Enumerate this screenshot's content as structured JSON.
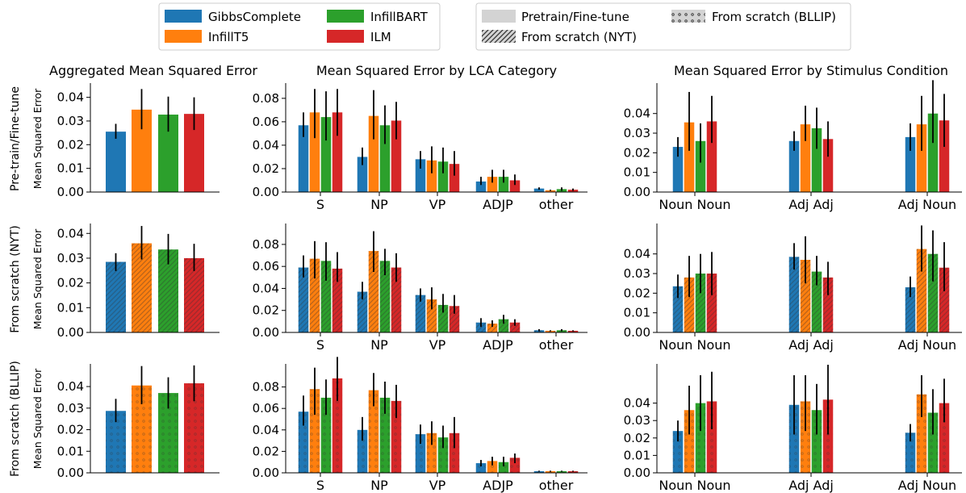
{
  "legend_models": {
    "items": [
      "GibbsComplete",
      "InfillT5",
      "InfillBART",
      "ILM"
    ],
    "colors": [
      "#1f77b4",
      "#ff7f0e",
      "#2ca02c",
      "#d62728"
    ]
  },
  "legend_training": {
    "items": [
      "Pretrain/Fine-tune",
      "From scratch (NYT)",
      "From scratch (BLLIP)"
    ],
    "hatches": [
      "none",
      "diagonal",
      "dots"
    ]
  },
  "column_titles": [
    "Aggregated Mean Squared Error",
    "Mean Squared Error by LCA Category",
    "Mean Squared Error by Stimulus Condition"
  ],
  "row_labels": [
    "Pre-train/Fine-tune",
    "From scratch (NYT)",
    "From scratch (BLLIP)"
  ],
  "ylabel": "Mean Squared Error",
  "chart_data": [
    {
      "type": "bar",
      "title": "Aggregated Mean Squared Error",
      "row": "Pre-train/Fine-tune",
      "ylabel": "Mean Squared Error",
      "ylim": [
        0,
        0.046
      ],
      "yticks": [
        "0.00",
        "0.01",
        "0.02",
        "0.03",
        "0.04"
      ],
      "categories": [
        ""
      ],
      "series": [
        {
          "name": "GibbsComplete",
          "values": [
            0.0255
          ],
          "err": [
            [
              0.0225,
              0.0288
            ]
          ]
        },
        {
          "name": "InfillT5",
          "values": [
            0.0348
          ],
          "err": [
            [
              0.0265,
              0.0435
            ]
          ]
        },
        {
          "name": "InfillBART",
          "values": [
            0.0327
          ],
          "err": [
            [
              0.0255,
              0.0403
            ]
          ]
        },
        {
          "name": "ILM",
          "values": [
            0.033
          ],
          "err": [
            [
              0.0262,
              0.04
            ]
          ]
        }
      ]
    },
    {
      "type": "bar",
      "title": "Mean Squared Error by LCA Category",
      "row": "Pre-train/Fine-tune",
      "ylim": [
        0,
        0.093
      ],
      "yticks": [
        "0.00",
        "0.02",
        "0.04",
        "0.06",
        "0.08"
      ],
      "categories": [
        "S",
        "NP",
        "VP",
        "ADJP",
        "other"
      ],
      "series": [
        {
          "name": "GibbsComplete",
          "values": [
            0.057,
            0.03,
            0.028,
            0.009,
            0.003
          ],
          "err": [
            [
              0.047,
              0.068
            ],
            [
              0.023,
              0.038
            ],
            [
              0.02,
              0.035
            ],
            [
              0.006,
              0.013
            ],
            [
              0.002,
              0.004
            ]
          ]
        },
        {
          "name": "InfillT5",
          "values": [
            0.068,
            0.065,
            0.027,
            0.013,
            0.0015
          ],
          "err": [
            [
              0.046,
              0.088
            ],
            [
              0.045,
              0.087
            ],
            [
              0.016,
              0.039
            ],
            [
              0.008,
              0.019
            ],
            [
              0.001,
              0.002
            ]
          ]
        },
        {
          "name": "InfillBART",
          "values": [
            0.064,
            0.057,
            0.026,
            0.013,
            0.0025
          ],
          "err": [
            [
              0.044,
              0.086
            ],
            [
              0.041,
              0.074
            ],
            [
              0.016,
              0.038
            ],
            [
              0.008,
              0.019
            ],
            [
              0.001,
              0.004
            ]
          ]
        },
        {
          "name": "ILM",
          "values": [
            0.068,
            0.061,
            0.024,
            0.01,
            0.002
          ],
          "err": [
            [
              0.048,
              0.088
            ],
            [
              0.045,
              0.077
            ],
            [
              0.014,
              0.035
            ],
            [
              0.006,
              0.015
            ],
            [
              0.001,
              0.003
            ]
          ]
        }
      ]
    },
    {
      "type": "bar",
      "title": "Mean Squared Error by Stimulus Condition",
      "row": "Pre-train/Fine-tune",
      "ylim": [
        0,
        0.0555
      ],
      "yticks": [
        "0.00",
        "0.01",
        "0.02",
        "0.03",
        "0.04"
      ],
      "categories": [
        "Noun Noun",
        "Adj Adj",
        "Adj Noun"
      ],
      "series": [
        {
          "name": "GibbsComplete",
          "values": [
            0.023,
            0.026,
            0.028
          ],
          "err": [
            [
              0.018,
              0.028
            ],
            [
              0.021,
              0.031
            ],
            [
              0.021,
              0.035
            ]
          ]
        },
        {
          "name": "InfillT5",
          "values": [
            0.0355,
            0.0345,
            0.0345
          ],
          "err": [
            [
              0.021,
              0.051
            ],
            [
              0.026,
              0.044
            ],
            [
              0.021,
              0.049
            ]
          ]
        },
        {
          "name": "InfillBART",
          "values": [
            0.026,
            0.0325,
            0.04
          ],
          "err": [
            [
              0.015,
              0.035
            ],
            [
              0.022,
              0.043
            ],
            [
              0.025,
              0.057
            ]
          ]
        },
        {
          "name": "ILM",
          "values": [
            0.036,
            0.027,
            0.0365
          ],
          "err": [
            [
              0.025,
              0.049
            ],
            [
              0.018,
              0.036
            ],
            [
              0.023,
              0.05
            ]
          ]
        }
      ]
    },
    {
      "type": "bar",
      "title": "",
      "row": "From scratch (NYT)",
      "ylabel": "Mean Squared Error",
      "ylim": [
        0,
        0.044
      ],
      "yticks": [
        "0.00",
        "0.01",
        "0.02",
        "0.03",
        "0.04"
      ],
      "categories": [
        ""
      ],
      "series": [
        {
          "name": "GibbsComplete",
          "values": [
            0.0285
          ],
          "err": [
            [
              0.0248,
              0.032
            ]
          ]
        },
        {
          "name": "InfillT5",
          "values": [
            0.036
          ],
          "err": [
            [
              0.0295,
              0.043
            ]
          ]
        },
        {
          "name": "InfillBART",
          "values": [
            0.0335
          ],
          "err": [
            [
              0.0275,
              0.0398
            ]
          ]
        },
        {
          "name": "ILM",
          "values": [
            0.03
          ],
          "err": [
            [
              0.0248,
              0.0358
            ]
          ]
        }
      ]
    },
    {
      "type": "bar",
      "title": "",
      "row": "From scratch (NYT)",
      "ylim": [
        0,
        0.099
      ],
      "yticks": [
        "0.00",
        "0.02",
        "0.04",
        "0.06",
        "0.08"
      ],
      "categories": [
        "S",
        "NP",
        "VP",
        "ADJP",
        "other"
      ],
      "series": [
        {
          "name": "GibbsComplete",
          "values": [
            0.059,
            0.037,
            0.034,
            0.009,
            0.002
          ],
          "err": [
            [
              0.05,
              0.07
            ],
            [
              0.03,
              0.046
            ],
            [
              0.028,
              0.04
            ],
            [
              0.005,
              0.013
            ],
            [
              0.001,
              0.003
            ]
          ]
        },
        {
          "name": "InfillT5",
          "values": [
            0.067,
            0.074,
            0.03,
            0.008,
            0.0015
          ],
          "err": [
            [
              0.049,
              0.083
            ],
            [
              0.055,
              0.092
            ],
            [
              0.021,
              0.041
            ],
            [
              0.005,
              0.011
            ],
            [
              0.001,
              0.002
            ]
          ]
        },
        {
          "name": "InfillBART",
          "values": [
            0.065,
            0.065,
            0.025,
            0.012,
            0.002
          ],
          "err": [
            [
              0.047,
              0.082
            ],
            [
              0.052,
              0.076
            ],
            [
              0.018,
              0.035
            ],
            [
              0.008,
              0.016
            ],
            [
              0.001,
              0.003
            ]
          ]
        },
        {
          "name": "ILM",
          "values": [
            0.058,
            0.059,
            0.024,
            0.009,
            0.0015
          ],
          "err": [
            [
              0.046,
              0.073
            ],
            [
              0.046,
              0.072
            ],
            [
              0.017,
              0.034
            ],
            [
              0.006,
              0.012
            ],
            [
              0.001,
              0.002
            ]
          ]
        }
      ]
    },
    {
      "type": "bar",
      "title": "",
      "row": "From scratch (NYT)",
      "ylim": [
        0,
        0.0555
      ],
      "yticks": [
        "0.00",
        "0.01",
        "0.02",
        "0.03",
        "0.04"
      ],
      "categories": [
        "Noun Noun",
        "Adj Adj",
        "Adj Noun"
      ],
      "series": [
        {
          "name": "GibbsComplete",
          "values": [
            0.0235,
            0.0385,
            0.023
          ],
          "err": [
            [
              0.0175,
              0.0295
            ],
            [
              0.032,
              0.0455
            ],
            [
              0.018,
              0.0285
            ]
          ]
        },
        {
          "name": "InfillT5",
          "values": [
            0.028,
            0.037,
            0.0425
          ],
          "err": [
            [
              0.018,
              0.039
            ],
            [
              0.025,
              0.049
            ],
            [
              0.031,
              0.0545
            ]
          ]
        },
        {
          "name": "InfillBART",
          "values": [
            0.03,
            0.031,
            0.04
          ],
          "err": [
            [
              0.02,
              0.04
            ],
            [
              0.024,
              0.039
            ],
            [
              0.026,
              0.052
            ]
          ]
        },
        {
          "name": "ILM",
          "values": [
            0.03,
            0.028,
            0.033
          ],
          "err": [
            [
              0.019,
              0.041
            ],
            [
              0.019,
              0.036
            ],
            [
              0.021,
              0.046
            ]
          ]
        }
      ]
    },
    {
      "type": "bar",
      "title": "",
      "row": "From scratch (BLLIP)",
      "ylabel": "Mean Squared Error",
      "ylim": [
        0,
        0.0505
      ],
      "yticks": [
        "0.00",
        "0.01",
        "0.02",
        "0.03",
        "0.04"
      ],
      "categories": [
        ""
      ],
      "series": [
        {
          "name": "GibbsComplete",
          "values": [
            0.0287
          ],
          "err": [
            [
              0.0235,
              0.0343
            ]
          ]
        },
        {
          "name": "InfillT5",
          "values": [
            0.0405
          ],
          "err": [
            [
              0.0318,
              0.0495
            ]
          ]
        },
        {
          "name": "InfillBART",
          "values": [
            0.037
          ],
          "err": [
            [
              0.0298,
              0.0443
            ]
          ]
        },
        {
          "name": "ILM",
          "values": [
            0.0415
          ],
          "err": [
            [
              0.0332,
              0.0498
            ]
          ]
        }
      ]
    },
    {
      "type": "bar",
      "title": "",
      "row": "From scratch (BLLIP)",
      "ylim": [
        0,
        0.1015
      ],
      "yticks": [
        "0.00",
        "0.02",
        "0.04",
        "0.06",
        "0.08"
      ],
      "categories": [
        "S",
        "NP",
        "VP",
        "ADJP",
        "other"
      ],
      "series": [
        {
          "name": "GibbsComplete",
          "values": [
            0.057,
            0.04,
            0.036,
            0.009,
            0.0015
          ],
          "err": [
            [
              0.044,
              0.072
            ],
            [
              0.03,
              0.052
            ],
            [
              0.027,
              0.045
            ],
            [
              0.006,
              0.012
            ],
            [
              0.001,
              0.002
            ]
          ]
        },
        {
          "name": "InfillT5",
          "values": [
            0.078,
            0.077,
            0.037,
            0.011,
            0.0015
          ],
          "err": [
            [
              0.054,
              0.098
            ],
            [
              0.062,
              0.093
            ],
            [
              0.026,
              0.048
            ],
            [
              0.007,
              0.015
            ],
            [
              0.001,
              0.002
            ]
          ]
        },
        {
          "name": "InfillBART",
          "values": [
            0.07,
            0.07,
            0.033,
            0.01,
            0.0015
          ],
          "err": [
            [
              0.054,
              0.087
            ],
            [
              0.055,
              0.085
            ],
            [
              0.023,
              0.044
            ],
            [
              0.006,
              0.015
            ],
            [
              0.001,
              0.002
            ]
          ]
        },
        {
          "name": "ILM",
          "values": [
            0.088,
            0.067,
            0.037,
            0.014,
            0.0015
          ],
          "err": [
            [
              0.067,
              0.108
            ],
            [
              0.051,
              0.082
            ],
            [
              0.023,
              0.052
            ],
            [
              0.009,
              0.018
            ],
            [
              0.001,
              0.002
            ]
          ]
        }
      ]
    },
    {
      "type": "bar",
      "title": "",
      "row": "From scratch (BLLIP)",
      "ylim": [
        0,
        0.0625
      ],
      "yticks": [
        "0.00",
        "0.01",
        "0.02",
        "0.03",
        "0.04"
      ],
      "categories": [
        "Noun Noun",
        "Adj Adj",
        "Adj Noun"
      ],
      "series": [
        {
          "name": "GibbsComplete",
          "values": [
            0.024,
            0.039,
            0.023
          ],
          "err": [
            [
              0.018,
              0.03
            ],
            [
              0.022,
              0.056
            ],
            [
              0.018,
              0.028
            ]
          ]
        },
        {
          "name": "InfillT5",
          "values": [
            0.036,
            0.041,
            0.045
          ],
          "err": [
            [
              0.022,
              0.05
            ],
            [
              0.024,
              0.056
            ],
            [
              0.032,
              0.056
            ]
          ]
        },
        {
          "name": "InfillBART",
          "values": [
            0.04,
            0.036,
            0.0345
          ],
          "err": [
            [
              0.024,
              0.056
            ],
            [
              0.022,
              0.051
            ],
            [
              0.022,
              0.048
            ]
          ]
        },
        {
          "name": "ILM",
          "values": [
            0.041,
            0.042,
            0.04
          ],
          "err": [
            [
              0.025,
              0.058
            ],
            [
              0.022,
              0.062
            ],
            [
              0.029,
              0.054
            ]
          ]
        }
      ]
    }
  ]
}
